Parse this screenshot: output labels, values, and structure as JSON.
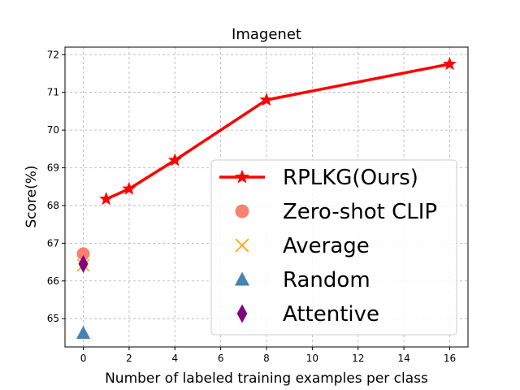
{
  "chart_data": {
    "type": "line",
    "title": "Imagenet",
    "xlabel": "Number of labeled training examples per class",
    "ylabel": "Score(%)",
    "xlim": [
      -0.8,
      16.8
    ],
    "ylim": [
      64.25,
      72.2
    ],
    "xticks": [
      0,
      2,
      4,
      6,
      8,
      10,
      12,
      14,
      16
    ],
    "yticks": [
      65,
      66,
      67,
      68,
      69,
      70,
      71,
      72
    ],
    "grid": true,
    "legend_position": "lower-right",
    "series": [
      {
        "name": "RPLKG(Ours)",
        "type": "line",
        "marker": "star",
        "color": "#ff0000",
        "x": [
          1,
          2,
          4,
          8,
          16
        ],
        "y": [
          68.17,
          68.44,
          69.2,
          70.8,
          71.75
        ]
      },
      {
        "name": "Zero-shot CLIP",
        "type": "scatter",
        "marker": "circle",
        "color": "#fa8072",
        "x": [
          0
        ],
        "y": [
          66.72
        ]
      },
      {
        "name": "Average",
        "type": "scatter",
        "marker": "x",
        "color": "#ffa500",
        "x": [
          0
        ],
        "y": [
          66.42
        ]
      },
      {
        "name": "Random",
        "type": "scatter",
        "marker": "triangle",
        "color": "#4682b4",
        "x": [
          0
        ],
        "y": [
          64.62
        ]
      },
      {
        "name": "Attentive",
        "type": "scatter",
        "marker": "diamond",
        "color": "#800080",
        "x": [
          0
        ],
        "y": [
          66.45
        ]
      }
    ]
  }
}
